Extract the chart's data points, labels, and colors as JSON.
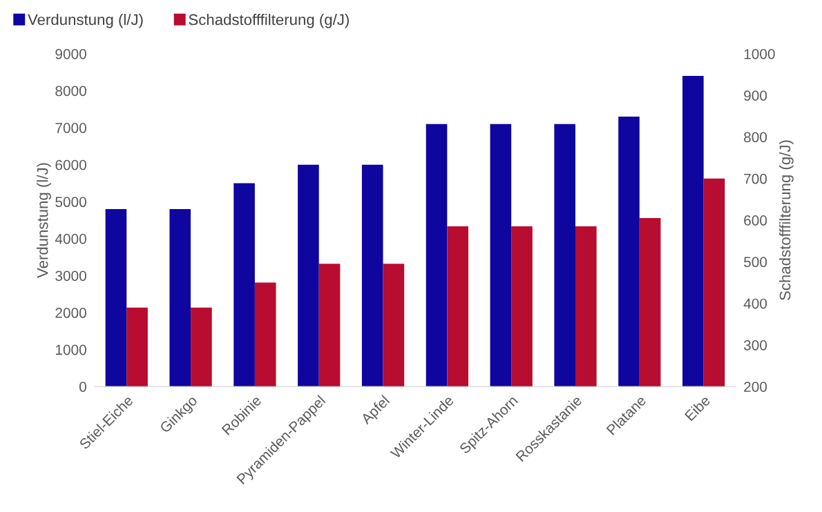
{
  "chart_data": {
    "type": "bar",
    "categories": [
      "Stiel-Eiche",
      "Ginkgo",
      "Robinie",
      "Pyramiden-Pappel",
      "Apfel",
      "Winter-Linde",
      "Spitz-Ahorn",
      "Rosskastanie",
      "Platane",
      "Eibe"
    ],
    "series": [
      {
        "name": "Verdunstung (l/J)",
        "color": "#0f06a0",
        "values": [
          4800,
          4800,
          5500,
          6000,
          6000,
          7100,
          7100,
          7100,
          7300,
          8400
        ]
      },
      {
        "name": "Schadstofffilterung (g/J)",
        "color": "#b80c30",
        "axis": "y2",
        "values": [
          390,
          390,
          450,
          495,
          495,
          585,
          585,
          585,
          605,
          700
        ]
      }
    ],
    "ylabel": "Verdunstung (l/J)",
    "y2label": "Schadstofffilterung (g/J)",
    "ylim": [
      0,
      9000
    ],
    "yticks": [
      0,
      1000,
      2000,
      3000,
      4000,
      5000,
      6000,
      7000,
      8000,
      9000
    ],
    "y2lim": [
      200,
      1000
    ],
    "y2ticks": [
      200,
      300,
      400,
      500,
      600,
      700,
      800,
      900,
      1000
    ],
    "grid": false,
    "legend": "top left"
  }
}
